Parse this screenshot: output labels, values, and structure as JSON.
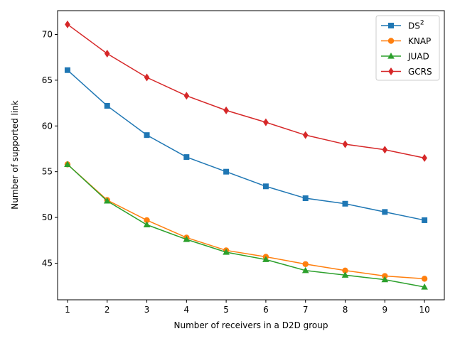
{
  "chart_data": {
    "type": "line",
    "xlabel": "Number of receivers in a D2D group",
    "ylabel": "Number of supported link",
    "x": [
      1,
      2,
      3,
      4,
      5,
      6,
      7,
      8,
      9,
      10
    ],
    "xticks": [
      "1",
      "2",
      "3",
      "4",
      "5",
      "6",
      "7",
      "8",
      "9",
      "10"
    ],
    "yticks": [
      45,
      50,
      55,
      60,
      65,
      70
    ],
    "xlim": [
      0.75,
      10.5
    ],
    "ylim": [
      41.0,
      72.6
    ],
    "grid": false,
    "legend_position": "top-right",
    "series": [
      {
        "name": "DS",
        "name_superscript": "2",
        "color": "#1f77b4",
        "marker": "square",
        "values": [
          66.1,
          62.2,
          59.0,
          56.6,
          55.0,
          53.4,
          52.1,
          51.5,
          50.6,
          49.7
        ]
      },
      {
        "name": "KNAP",
        "color": "#ff7f0e",
        "marker": "circle",
        "values": [
          55.8,
          51.9,
          49.7,
          47.8,
          46.4,
          45.7,
          44.9,
          44.2,
          43.6,
          43.3
        ]
      },
      {
        "name": "JUAD",
        "color": "#2ca02c",
        "marker": "triangle",
        "values": [
          55.8,
          51.8,
          49.2,
          47.6,
          46.2,
          45.4,
          44.2,
          43.7,
          43.2,
          42.4
        ]
      },
      {
        "name": "GCRS",
        "color": "#d62728",
        "marker": "diamond",
        "values": [
          71.1,
          67.9,
          65.3,
          63.3,
          61.7,
          60.4,
          59.0,
          58.0,
          57.4,
          56.5
        ]
      }
    ]
  }
}
